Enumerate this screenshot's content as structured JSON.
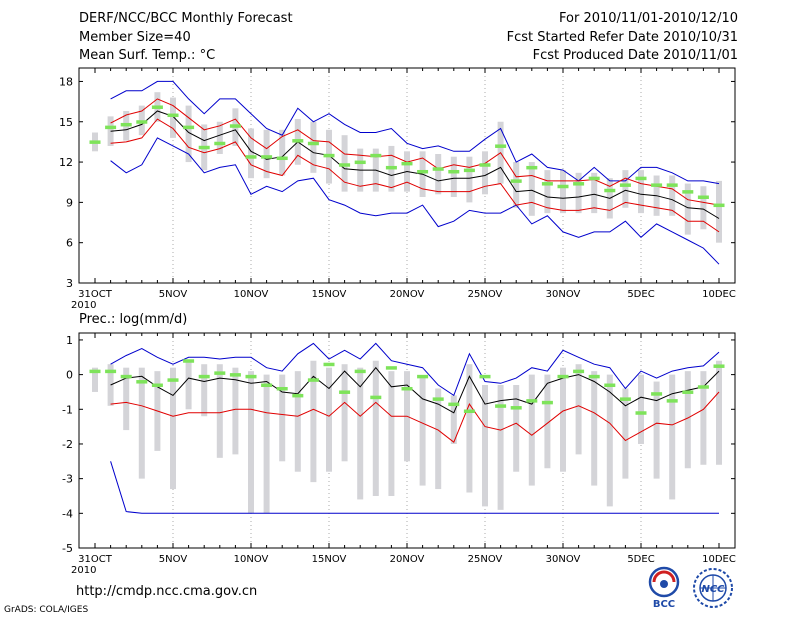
{
  "header": {
    "title": "DERF/NCC/BCC Monthly Forecast",
    "member_size": "Member Size=40",
    "variable": "Mean Surf. Temp.: °C",
    "period": "For 2010/11/01-2010/12/10",
    "started": "Fcst Started Refer Date 2010/10/31",
    "produced": "Fcst Produced Date 2010/11/01"
  },
  "footer": {
    "url": "http://cmdp.ncc.cma.gov.cn",
    "credit": "GrADS: COLA/IGES",
    "logo_left": "BCC",
    "logo_right": "NCC"
  },
  "colors": {
    "box": "#d4d4d8",
    "median": "#7ee35a",
    "ensemble_mean": "#000000",
    "std_band": "#e00000",
    "extremes": "#0000cc",
    "gridline": "#888888"
  },
  "chart_data": [
    {
      "type": "line",
      "panel": "temperature",
      "ylabel": "Mean Surf. Temp.: °C",
      "ylim": [
        3,
        19
      ],
      "yticks": [
        "3",
        "6",
        "9",
        "12",
        "15",
        "18"
      ],
      "x": [
        "31OCT",
        "1NOV",
        "2NOV",
        "3NOV",
        "4NOV",
        "5NOV",
        "6NOV",
        "7NOV",
        "8NOV",
        "9NOV",
        "10NOV",
        "11NOV",
        "12NOV",
        "13NOV",
        "14NOV",
        "15NOV",
        "16NOV",
        "17NOV",
        "18NOV",
        "19NOV",
        "20NOV",
        "21NOV",
        "22NOV",
        "23NOV",
        "24NOV",
        "25NOV",
        "26NOV",
        "27NOV",
        "28NOV",
        "29NOV",
        "30NOV",
        "1DEC",
        "2DEC",
        "3DEC",
        "4DEC",
        "5DEC",
        "6DEC",
        "7DEC",
        "8DEC",
        "9DEC",
        "10DEC"
      ],
      "xtick_labels": [
        {
          "index": 0,
          "label": "31OCT"
        },
        {
          "index": 5,
          "label": "5NOV"
        },
        {
          "index": 10,
          "label": "10NOV"
        },
        {
          "index": 15,
          "label": "15NOV"
        },
        {
          "index": 20,
          "label": "20NOV"
        },
        {
          "index": 25,
          "label": "25NOV"
        },
        {
          "index": 30,
          "label": "30NOV"
        },
        {
          "index": 35,
          "label": "5DEC"
        },
        {
          "index": 40,
          "label": "10DEC"
        }
      ],
      "x_year_label": "2010",
      "series": [
        {
          "name": "ensemble max",
          "role": "max",
          "values": [
            null,
            16.7,
            17.3,
            17.3,
            18.0,
            18.0,
            16.7,
            15.6,
            16.7,
            16.7,
            15.6,
            14.5,
            14.0,
            16.0,
            15.0,
            15.6,
            14.8,
            14.2,
            14.2,
            14.5,
            13.4,
            13.0,
            13.2,
            12.8,
            12.8,
            13.7,
            14.5,
            12.0,
            12.6,
            11.6,
            11.4,
            10.6,
            11.6,
            10.6,
            10.6,
            11.6,
            11.6,
            11.2,
            10.6,
            10.6,
            10.4
          ]
        },
        {
          "name": "ensemble min",
          "role": "min",
          "values": [
            null,
            12.1,
            11.2,
            11.8,
            13.8,
            13.2,
            12.6,
            11.2,
            11.6,
            11.8,
            9.6,
            10.2,
            9.8,
            10.6,
            10.8,
            9.2,
            8.8,
            8.2,
            8.0,
            8.2,
            8.2,
            8.8,
            7.2,
            7.6,
            8.4,
            8.2,
            8.2,
            8.8,
            7.4,
            8.0,
            6.8,
            6.4,
            6.8,
            6.8,
            7.6,
            6.4,
            7.4,
            6.8,
            6.2,
            5.6,
            4.4
          ]
        },
        {
          "name": "mean + 1 sd",
          "role": "upper",
          "values": [
            null,
            14.9,
            15.5,
            15.8,
            16.7,
            16.2,
            15.3,
            14.4,
            14.7,
            15.2,
            13.8,
            13.0,
            13.9,
            14.4,
            13.6,
            13.5,
            12.6,
            12.5,
            12.4,
            12.5,
            12.0,
            12.3,
            11.5,
            11.8,
            11.6,
            11.9,
            12.7,
            10.9,
            11.0,
            10.6,
            10.6,
            10.6,
            10.7,
            10.2,
            10.8,
            10.4,
            10.2,
            10.0,
            9.2,
            9.0,
            8.8
          ]
        },
        {
          "name": "ensemble mean",
          "role": "mean",
          "values": [
            null,
            14.3,
            14.4,
            14.8,
            15.8,
            15.4,
            14.2,
            13.6,
            14.0,
            14.4,
            12.8,
            12.2,
            12.4,
            13.5,
            12.7,
            12.5,
            11.5,
            11.4,
            11.4,
            11.0,
            11.3,
            11.1,
            10.6,
            10.8,
            10.8,
            11.0,
            11.6,
            9.8,
            9.9,
            9.4,
            9.3,
            9.4,
            9.6,
            9.3,
            9.9,
            9.6,
            9.5,
            9.2,
            8.6,
            8.5,
            7.8
          ]
        },
        {
          "name": "mean - 1 sd",
          "role": "lower",
          "values": [
            null,
            13.4,
            13.5,
            13.8,
            15.2,
            14.5,
            13.1,
            12.7,
            13.0,
            13.5,
            11.8,
            11.3,
            11.0,
            12.5,
            11.8,
            11.5,
            10.5,
            10.2,
            10.4,
            10.1,
            10.5,
            10.0,
            9.8,
            9.8,
            9.8,
            10.2,
            10.4,
            8.8,
            9.0,
            8.6,
            8.4,
            8.4,
            8.6,
            8.4,
            9.0,
            8.8,
            8.6,
            8.4,
            7.6,
            7.6,
            6.8
          ]
        },
        {
          "name": "ensemble median",
          "role": "median",
          "values": [
            13.5,
            14.6,
            14.8,
            15.0,
            16.1,
            15.5,
            14.6,
            13.1,
            13.4,
            14.7,
            12.4,
            12.4,
            12.3,
            13.6,
            13.4,
            12.5,
            11.8,
            12.0,
            12.5,
            11.6,
            11.9,
            11.3,
            11.5,
            11.3,
            11.4,
            11.8,
            13.2,
            10.6,
            11.6,
            10.4,
            10.2,
            10.4,
            10.8,
            9.9,
            10.3,
            10.8,
            10.3,
            10.3,
            9.8,
            9.4,
            8.8
          ]
        },
        {
          "name": "box top",
          "role": "box_hi",
          "values": [
            14.2,
            15.4,
            15.8,
            16.2,
            17.2,
            16.8,
            16.2,
            14.8,
            15.0,
            16.0,
            14.5,
            14.4,
            14.4,
            15.2,
            15.0,
            14.4,
            14.0,
            13.0,
            13.0,
            13.2,
            12.8,
            12.8,
            12.6,
            12.4,
            12.4,
            12.8,
            15.0,
            12.0,
            12.0,
            11.4,
            11.4,
            11.2,
            11.2,
            10.8,
            11.4,
            11.4,
            11.0,
            11.0,
            10.4,
            10.2,
            10.6
          ]
        },
        {
          "name": "box bottom",
          "role": "box_lo",
          "values": [
            12.8,
            13.2,
            13.6,
            14.0,
            15.0,
            13.8,
            12.0,
            11.4,
            12.6,
            13.2,
            10.8,
            10.8,
            11.0,
            11.8,
            11.2,
            10.4,
            9.8,
            9.8,
            9.8,
            9.8,
            9.8,
            9.4,
            9.6,
            9.4,
            9.0,
            9.6,
            10.4,
            8.6,
            8.0,
            8.2,
            8.2,
            8.2,
            8.2,
            7.8,
            8.6,
            8.2,
            8.0,
            8.0,
            6.6,
            7.0,
            6.0
          ]
        }
      ]
    },
    {
      "type": "line",
      "panel": "precipitation",
      "ylabel": "Prec.: log(mm/d)",
      "ylim": [
        -5,
        1.2
      ],
      "yticks": [
        "-5",
        "-4",
        "-3",
        "-2",
        "-1",
        "0",
        "1"
      ],
      "x": [
        "31OCT",
        "1NOV",
        "2NOV",
        "3NOV",
        "4NOV",
        "5NOV",
        "6NOV",
        "7NOV",
        "8NOV",
        "9NOV",
        "10NOV",
        "11NOV",
        "12NOV",
        "13NOV",
        "14NOV",
        "15NOV",
        "16NOV",
        "17NOV",
        "18NOV",
        "19NOV",
        "20NOV",
        "21NOV",
        "22NOV",
        "23NOV",
        "24NOV",
        "25NOV",
        "26NOV",
        "27NOV",
        "28NOV",
        "29NOV",
        "30NOV",
        "1DEC",
        "2DEC",
        "3DEC",
        "4DEC",
        "5DEC",
        "6DEC",
        "7DEC",
        "8DEC",
        "9DEC",
        "10DEC"
      ],
      "xtick_labels": [
        {
          "index": 0,
          "label": "31OCT"
        },
        {
          "index": 5,
          "label": "5NOV"
        },
        {
          "index": 10,
          "label": "10NOV"
        },
        {
          "index": 15,
          "label": "15NOV"
        },
        {
          "index": 20,
          "label": "20NOV"
        },
        {
          "index": 25,
          "label": "25NOV"
        },
        {
          "index": 30,
          "label": "30NOV"
        },
        {
          "index": 35,
          "label": "5DEC"
        },
        {
          "index": 40,
          "label": "10DEC"
        }
      ],
      "x_year_label": "2010",
      "series": [
        {
          "name": "ensemble max",
          "role": "max",
          "values": [
            null,
            0.3,
            0.55,
            0.75,
            0.5,
            0.3,
            0.5,
            0.5,
            0.45,
            0.5,
            0.5,
            0.2,
            0.1,
            0.6,
            0.9,
            0.45,
            0.7,
            0.45,
            0.9,
            0.4,
            0.3,
            0.2,
            -0.3,
            -0.6,
            0.6,
            -0.2,
            -0.25,
            -0.1,
            0.2,
            0.1,
            0.7,
            0.5,
            0.3,
            0.2,
            -0.4,
            0.1,
            -0.1,
            0.1,
            0.2,
            0.25,
            0.65
          ]
        },
        {
          "name": "ensemble min",
          "role": "min",
          "values": [
            null,
            -2.5,
            -3.95,
            -4.0,
            -4.0,
            -4.0,
            -4.0,
            -4.0,
            -4.0,
            -4.0,
            -4.0,
            -4.0,
            -4.0,
            -4.0,
            -4.0,
            -4.0,
            -4.0,
            -4.0,
            -4.0,
            -4.0,
            -4.0,
            -4.0,
            -4.0,
            -4.0,
            -4.0,
            -4.0,
            -4.0,
            -4.0,
            -4.0,
            -4.0,
            -4.0,
            -4.0,
            -4.0,
            -4.0,
            -4.0,
            -4.0,
            -4.0,
            -4.0,
            -4.0,
            -4.0,
            -4.0
          ]
        },
        {
          "name": "ensemble mean",
          "role": "mean",
          "values": [
            null,
            -0.3,
            -0.1,
            -0.05,
            -0.35,
            -0.6,
            -0.1,
            -0.2,
            -0.1,
            -0.15,
            -0.25,
            -0.2,
            -0.5,
            -0.55,
            -0.05,
            -0.4,
            0.1,
            -0.35,
            0.2,
            -0.35,
            -0.3,
            -0.7,
            -0.85,
            -1.1,
            -0.05,
            -0.85,
            -0.75,
            -0.7,
            -0.85,
            -0.25,
            -0.1,
            0.0,
            -0.2,
            -0.5,
            -0.9,
            -0.65,
            -0.75,
            -0.55,
            -0.45,
            -0.35,
            0.1
          ]
        },
        {
          "name": "mean - 1 sd",
          "role": "lower",
          "values": [
            null,
            -0.85,
            -0.8,
            -0.9,
            -1.05,
            -1.2,
            -1.1,
            -1.1,
            -1.1,
            -1.0,
            -1.0,
            -1.1,
            -1.15,
            -1.2,
            -1.0,
            -1.2,
            -0.8,
            -1.2,
            -0.8,
            -1.2,
            -1.2,
            -1.4,
            -1.6,
            -1.95,
            -0.85,
            -1.5,
            -1.6,
            -1.4,
            -1.75,
            -1.4,
            -1.05,
            -0.9,
            -1.1,
            -1.4,
            -1.9,
            -1.65,
            -1.4,
            -1.45,
            -1.25,
            -1.0,
            -0.5
          ]
        },
        {
          "name": "ensemble median",
          "role": "median",
          "values": [
            0.1,
            0.1,
            -0.05,
            -0.2,
            -0.3,
            -0.15,
            0.4,
            -0.05,
            0.05,
            0.0,
            -0.05,
            -0.3,
            -0.4,
            -0.6,
            -0.15,
            0.3,
            -0.5,
            0.1,
            -0.65,
            0.2,
            -0.4,
            -0.05,
            -0.7,
            -0.85,
            -1.05,
            -0.05,
            -0.9,
            -0.95,
            -0.75,
            -0.8,
            -0.05,
            0.1,
            -0.05,
            -0.3,
            -0.7,
            -1.1,
            -0.55,
            -0.75,
            -0.5,
            -0.35,
            0.25
          ]
        },
        {
          "name": "box top",
          "role": "box_hi",
          "values": [
            0.2,
            0.3,
            0.2,
            0.2,
            0.1,
            0.2,
            0.4,
            0.3,
            0.3,
            0.2,
            0.1,
            0.0,
            0.0,
            0.1,
            0.4,
            0.2,
            0.3,
            0.2,
            0.4,
            0.1,
            0.1,
            -0.1,
            -0.4,
            -0.6,
            0.3,
            -0.3,
            -0.3,
            -0.3,
            0.0,
            0.0,
            0.2,
            0.3,
            0.1,
            0.0,
            -0.4,
            0.0,
            -0.2,
            0.0,
            0.1,
            0.1,
            0.4
          ]
        },
        {
          "name": "box bottom",
          "role": "box_lo",
          "values": [
            -0.5,
            -0.9,
            -1.6,
            -3.0,
            -2.2,
            -3.3,
            -1.0,
            -1.2,
            -2.4,
            -2.3,
            -4.0,
            -4.0,
            -2.5,
            -2.8,
            -3.1,
            -2.8,
            -2.5,
            -3.6,
            -3.5,
            -3.5,
            -2.5,
            -3.2,
            -3.3,
            -2.0,
            -3.4,
            -3.8,
            -3.9,
            -2.8,
            -3.2,
            -2.7,
            -2.8,
            -2.3,
            -3.2,
            -3.8,
            -3.0,
            -2.0,
            -3.0,
            -3.6,
            -2.7,
            -2.6,
            -2.6
          ]
        }
      ]
    }
  ]
}
